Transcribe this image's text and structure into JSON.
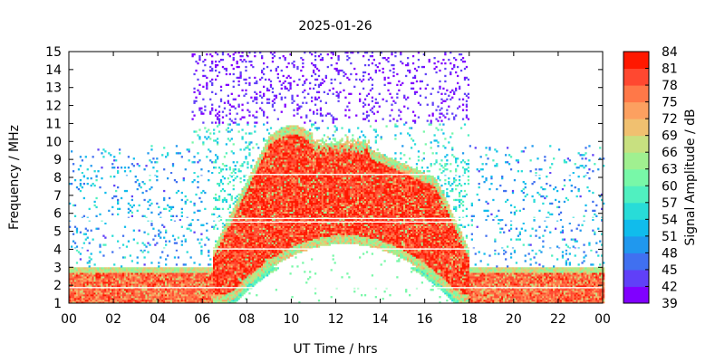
{
  "chart_data": {
    "type": "heatmap",
    "title": "2025-01-26",
    "xlabel": "UT Time / hrs",
    "ylabel": "Frequency / MHz",
    "colorbar_label": "Signal Amplitude / dB",
    "xlim": [
      0,
      24
    ],
    "ylim": [
      1,
      15
    ],
    "x_ticks": [
      "00",
      "02",
      "04",
      "06",
      "08",
      "10",
      "12",
      "14",
      "16",
      "18",
      "20",
      "22",
      "00"
    ],
    "y_ticks": [
      "1",
      "2",
      "3",
      "4",
      "5",
      "6",
      "7",
      "8",
      "9",
      "10",
      "11",
      "12",
      "13",
      "14",
      "15"
    ],
    "colorbar_ticks": [
      "39",
      "42",
      "45",
      "48",
      "51",
      "54",
      "57",
      "60",
      "63",
      "66",
      "69",
      "72",
      "75",
      "78",
      "81",
      "84"
    ],
    "colorbar_range": [
      39,
      84
    ],
    "colorbar_colors": [
      "#8000ff",
      "#6040f8",
      "#4070f0",
      "#2098ee",
      "#10bcec",
      "#28dcd8",
      "#50f0c0",
      "#78f8a8",
      "#a0f090",
      "#c8e080",
      "#f0c070",
      "#fca060",
      "#ff7848",
      "#ff4830",
      "#ff1800"
    ],
    "grid": false,
    "features": [
      {
        "region": "low-frequency band",
        "x": [
          0,
          24
        ],
        "y": [
          1,
          3
        ],
        "level_db": 76
      },
      {
        "region": "daytime enhancement",
        "x": [
          6.5,
          18
        ],
        "y": [
          1,
          10.5
        ],
        "level_db": 82
      },
      {
        "region": "sporadic high-band noise",
        "x": [
          5.5,
          18
        ],
        "y": [
          11,
          15
        ],
        "level_db": 40
      }
    ]
  }
}
